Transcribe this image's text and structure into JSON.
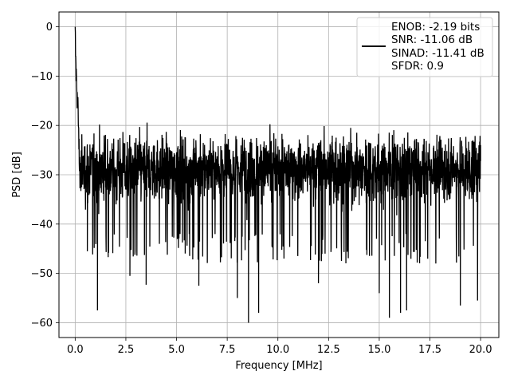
{
  "chart_data": {
    "type": "line",
    "title": "",
    "xlabel": "Frequency [MHz]",
    "ylabel": "PSD [dB]",
    "xlim": [
      -0.8,
      20.9
    ],
    "ylim": [
      -63,
      3
    ],
    "xticks": [
      0.0,
      2.5,
      5.0,
      7.5,
      10.0,
      12.5,
      15.0,
      17.5,
      20.0
    ],
    "xtick_labels": [
      "0.0",
      "2.5",
      "5.0",
      "7.5",
      "10.0",
      "12.5",
      "15.0",
      "17.5",
      "20.0"
    ],
    "yticks": [
      0,
      -10,
      -20,
      -30,
      -40,
      -50,
      -60
    ],
    "ytick_labels": [
      "0",
      "−10",
      "−20",
      "−30",
      "−40",
      "−50",
      "−60"
    ],
    "grid": true,
    "legend_position": "top-right",
    "line_color": "#000000",
    "series": [
      {
        "name": "",
        "description_values": {
          "x_range": [
            0.0,
            20.0
          ],
          "peak_at_zero_db": 0.0,
          "envelope_top_low_freq": -16,
          "envelope_top_high_freq": -22,
          "envelope_bottom_typical": -42,
          "noise_floor_mean": -30
        },
        "x": [
          0.0,
          0.02,
          0.05,
          0.08,
          0.1,
          0.15,
          0.2,
          0.3,
          0.6,
          1.1,
          2.7,
          3.5,
          6.1,
          8.0,
          8.55,
          9.05,
          12.0,
          15.0,
          15.5,
          16.05,
          16.35,
          19.0,
          19.85,
          20.0
        ],
        "values": [
          0.0,
          -6.0,
          -10.0,
          -12.0,
          -14.0,
          -18.0,
          -27.0,
          -33.0,
          -45.5,
          -57.5,
          -50.5,
          -52.3,
          -52.5,
          -55.0,
          -60.0,
          -58.0,
          -52.0,
          -54.0,
          -59.0,
          -58.0,
          -57.5,
          -56.5,
          -55.5,
          -24.0
        ]
      }
    ],
    "legend_lines": [
      "ENOB: -2.19 bits",
      "SNR: -11.06 dB",
      "SINAD: -11.41 dB",
      "SFDR: 0.9"
    ]
  }
}
